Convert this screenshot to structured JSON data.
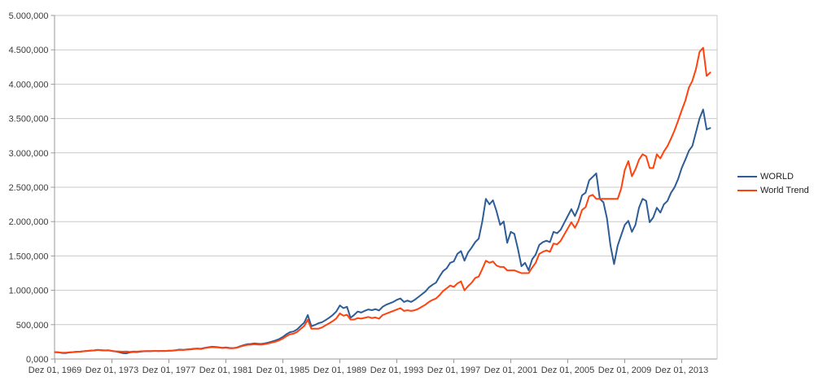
{
  "chart_data": {
    "type": "line",
    "title": "",
    "xlabel": "",
    "ylabel": "",
    "x_start": "Dez 01, 1969",
    "x_end": "Dez 2015",
    "points_per_year": 4,
    "x_tick_labels": [
      "Dez 01, 1969",
      "Dez 01, 1973",
      "Dez 01, 1977",
      "Dez 01, 1981",
      "Dez 01, 1985",
      "Dez 01, 1989",
      "Dez 01, 1993",
      "Dez 01, 1997",
      "Dez 01, 2001",
      "Dez 01, 2005",
      "Dez 01, 2009",
      "Dez 01, 2013"
    ],
    "y_tick_labels": [
      "0,000",
      "500,000",
      "1.000,000",
      "1.500,000",
      "2.000,000",
      "2.500,000",
      "3.000,000",
      "3.500,000",
      "4.000,000",
      "4.500,000",
      "5.000,000"
    ],
    "ylim": [
      0,
      5000
    ],
    "y_tick_step": 500,
    "grid": "horizontal",
    "legend_position": "right",
    "background_color": "#ffffff",
    "gridline_color": "#c9c9c9",
    "axis_color": "#9a9a9a",
    "series": [
      {
        "name": "WORLD",
        "color": "#2d5c96",
        "values": [
          100,
          97,
          88,
          85,
          95,
          100,
          105,
          107,
          113,
          119,
          123,
          126,
          134,
          129,
          125,
          128,
          118,
          110,
          100,
          86,
          83,
          96,
          104,
          101,
          108,
          113,
          115,
          114,
          118,
          116,
          118,
          117,
          121,
          123,
          129,
          137,
          134,
          139,
          143,
          149,
          153,
          149,
          161,
          171,
          179,
          176,
          171,
          163,
          169,
          161,
          159,
          166,
          186,
          201,
          216,
          219,
          226,
          221,
          219,
          229,
          241,
          256,
          271,
          291,
          321,
          361,
          391,
          401,
          431,
          481,
          531,
          641,
          476,
          496,
          521,
          536,
          566,
          601,
          641,
          691,
          780,
          741,
          761,
          601,
          641,
          691,
          676,
          701,
          721,
          711,
          726,
          706,
          760,
          790,
          810,
          830,
          861,
          881,
          831,
          851,
          831,
          861,
          901,
          941,
          981,
          1041,
          1081,
          1111,
          1201,
          1281,
          1321,
          1401,
          1421,
          1531,
          1571,
          1431,
          1551,
          1621,
          1701,
          1751,
          2001,
          2331,
          2251,
          2311,
          2151,
          1951,
          2001,
          1691,
          1851,
          1821,
          1601,
          1351,
          1401,
          1291,
          1451,
          1521,
          1661,
          1701,
          1721,
          1701,
          1851,
          1831,
          1881,
          1981,
          2081,
          2181,
          2081,
          2201,
          2381,
          2421,
          2601,
          2651,
          2701,
          2331,
          2281,
          2051,
          1651,
          1381,
          1651,
          1801,
          1951,
          2011,
          1851,
          1951,
          2201,
          2331,
          2301,
          1991,
          2061,
          2201,
          2131,
          2251,
          2301,
          2421,
          2501,
          2621,
          2781,
          2901,
          3031,
          3101,
          3301,
          3501,
          3631,
          3341,
          3361
        ]
      },
      {
        "name": "World Trend",
        "color": "#ff420e",
        "values": [
          100,
          98,
          93,
          92,
          97,
          101,
          106,
          107,
          112,
          117,
          121,
          124,
          131,
          127,
          124,
          125,
          117,
          112,
          109,
          107,
          109,
          103,
          110,
          108,
          112,
          115,
          116,
          115,
          119,
          116,
          118,
          117,
          120,
          122,
          127,
          134,
          131,
          136,
          140,
          146,
          150,
          146,
          157,
          166,
          173,
          171,
          167,
          160,
          165,
          158,
          156,
          162,
          180,
          193,
          206,
          209,
          215,
          211,
          209,
          218,
          228,
          240,
          253,
          272,
          298,
          333,
          360,
          368,
          395,
          438,
          482,
          572,
          442,
          442,
          442,
          460,
          490,
          520,
          552,
          590,
          663,
          630,
          645,
          575,
          575,
          595,
          588,
          600,
          612,
          596,
          605,
          586,
          640,
          660,
          680,
          700,
          720,
          740,
          700,
          710,
          700,
          710,
          730,
          760,
          790,
          830,
          860,
          880,
          930,
          990,
          1030,
          1070,
          1050,
          1100,
          1130,
          1000,
          1060,
          1110,
          1180,
          1200,
          1310,
          1430,
          1400,
          1420,
          1360,
          1340,
          1340,
          1290,
          1290,
          1290,
          1270,
          1250,
          1250,
          1250,
          1330,
          1400,
          1530,
          1560,
          1580,
          1560,
          1680,
          1670,
          1720,
          1810,
          1900,
          1990,
          1910,
          2010,
          2170,
          2210,
          2370,
          2390,
          2330,
          2330,
          2330,
          2330,
          2330,
          2330,
          2330,
          2480,
          2750,
          2880,
          2660,
          2760,
          2900,
          2980,
          2950,
          2780,
          2780,
          2980,
          2920,
          3020,
          3100,
          3210,
          3330,
          3470,
          3620,
          3760,
          3950,
          4050,
          4220,
          4470,
          4530,
          4120,
          4170
        ]
      }
    ]
  }
}
